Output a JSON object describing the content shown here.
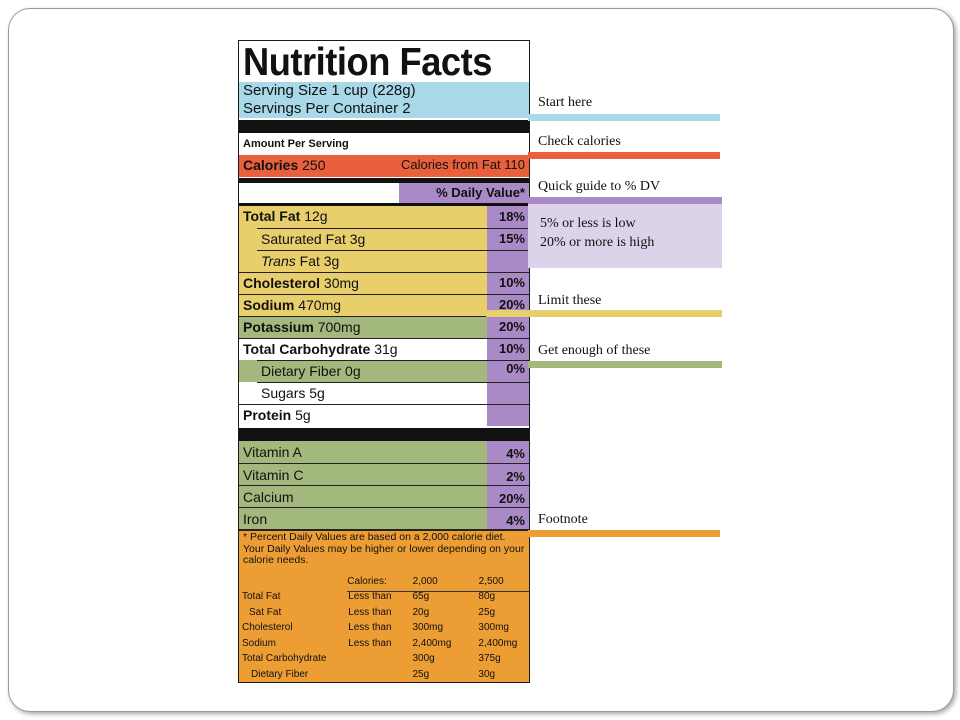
{
  "label": {
    "title": "Nutrition Facts",
    "serving_size": "Serving Size 1 cup (228g)",
    "servings_per_container": "Servings Per Container  2",
    "amount_per_serving": "Amount Per Serving",
    "calories_label": "Calories",
    "calories_value": "250",
    "calories_from_fat": "Calories from Fat 110",
    "daily_value_header": "% Daily Value*",
    "nutrients": [
      {
        "name": "Total Fat",
        "amount": "12g",
        "pct": "18%"
      },
      {
        "name": "Saturated Fat",
        "amount": "3g",
        "pct": "15%"
      },
      {
        "name": "Trans",
        "amount": "Fat 3g",
        "pct": ""
      },
      {
        "name": "Cholesterol",
        "amount": "30mg",
        "pct": "10%"
      },
      {
        "name": "Sodium",
        "amount": "470mg",
        "pct": "20%"
      },
      {
        "name": "Potassium",
        "amount": "700mg",
        "pct": "20%"
      },
      {
        "name": "Total Carbohydrate",
        "amount": "31g",
        "pct": "10%"
      },
      {
        "name": "Dietary Fiber",
        "amount": "0g",
        "pct": "0%"
      },
      {
        "name": "Sugars",
        "amount": "5g",
        "pct": ""
      },
      {
        "name": "Protein",
        "amount": "5g",
        "pct": ""
      }
    ],
    "vitamins": [
      {
        "name": "Vitamin A",
        "pct": "4%"
      },
      {
        "name": "Vitamin C",
        "pct": "2%"
      },
      {
        "name": "Calcium",
        "pct": "20%"
      },
      {
        "name": "Iron",
        "pct": "4%"
      }
    ],
    "footnote_text": "* Percent Daily Values are based on a 2,000 calorie diet. Your Daily Values may be higher or lower depending on your calorie needs.",
    "footnote_table": {
      "header": [
        "",
        "Calories:",
        "2,000",
        "2,500"
      ],
      "rows": [
        [
          "Total Fat",
          "Less than",
          "65g",
          "80g"
        ],
        [
          "Sat Fat",
          "Less than",
          "20g",
          "25g"
        ],
        [
          "Cholesterol",
          "Less than",
          "300mg",
          "300mg"
        ],
        [
          "Sodium",
          "Less than",
          "2,400mg",
          "2,400mg"
        ],
        [
          "Total Carbohydrate",
          "",
          "300g",
          "375g"
        ],
        [
          "Dietary Fiber",
          "",
          "25g",
          "30g"
        ]
      ]
    }
  },
  "annotations": {
    "start_here": "Start here",
    "check_calories": "Check calories",
    "quick_guide": "Quick guide to % DV",
    "guide_low": "5% or less is low",
    "guide_high": "20% or more is high",
    "limit_these": "Limit these",
    "get_enough": "Get enough of these",
    "footnote": "Footnote"
  },
  "colors": {
    "blue": "#a9d9e8",
    "red": "#e8603c",
    "purple": "#a98ac6",
    "light_purple": "#dcd3ea",
    "yellow": "#e8cf6c",
    "green": "#a3b87c",
    "orange": "#ec9d33"
  }
}
